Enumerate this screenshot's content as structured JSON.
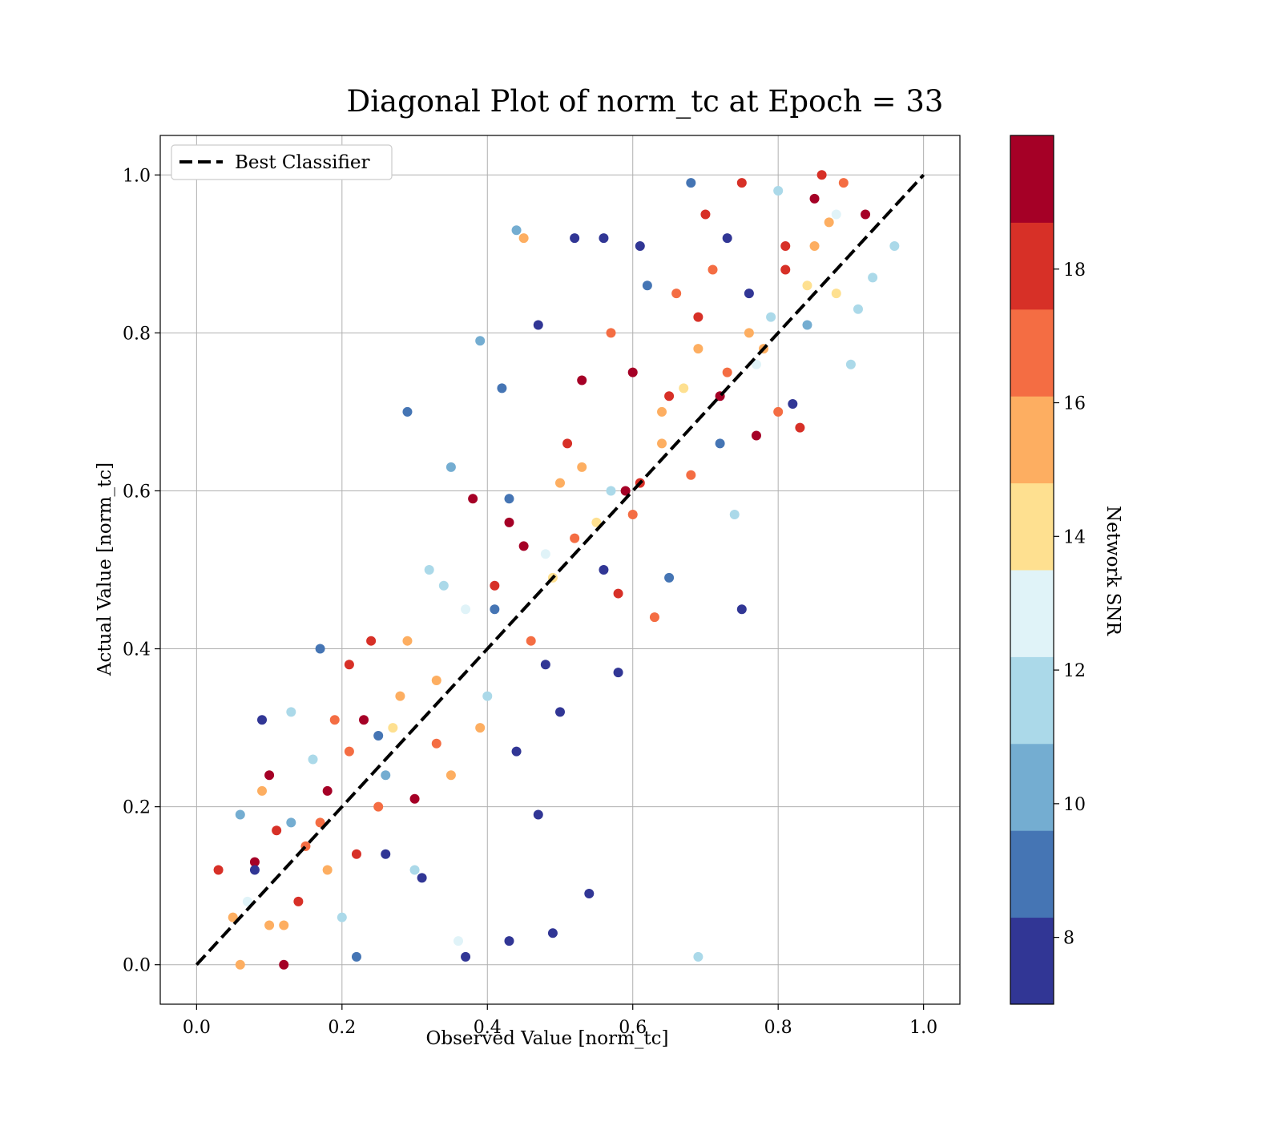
{
  "chart_data": {
    "type": "scatter",
    "title": "Diagonal Plot of norm_tc at Epoch = 33",
    "xlabel": "Observed Value [norm_tc]",
    "ylabel": "Actual Value [norm_tc]",
    "xlim": [
      -0.05,
      1.05
    ],
    "ylim": [
      -0.05,
      1.05
    ],
    "xticks": [
      "0.0",
      "0.2",
      "0.4",
      "0.6",
      "0.8",
      "1.0"
    ],
    "yticks": [
      "0.0",
      "0.2",
      "0.4",
      "0.6",
      "0.8",
      "1.0"
    ],
    "grid": true,
    "legend": {
      "placement": "upper-left",
      "entries": [
        "Best Classifier"
      ]
    },
    "reference_line": {
      "name": "Best Classifier",
      "style": "dashed",
      "color": "#000000",
      "x": [
        0,
        1
      ],
      "y": [
        0,
        1
      ]
    },
    "colorbar": {
      "label": "Network SNR",
      "range": [
        7,
        20
      ],
      "ticks": [
        "8",
        "10",
        "12",
        "14",
        "16",
        "18"
      ],
      "colors": [
        "#313695",
        "#4575b4",
        "#74add1",
        "#abd9e9",
        "#e0f3f8",
        "#fee090",
        "#fdae61",
        "#f46d43",
        "#d73027",
        "#a50026"
      ]
    },
    "points": [
      [
        0.03,
        0.12,
        18
      ],
      [
        0.05,
        0.06,
        15
      ],
      [
        0.06,
        0.19,
        10
      ],
      [
        0.07,
        0.08,
        13
      ],
      [
        0.08,
        0.13,
        19
      ],
      [
        0.09,
        0.31,
        8
      ],
      [
        0.1,
        0.24,
        19
      ],
      [
        0.11,
        0.17,
        18
      ],
      [
        0.12,
        0.05,
        16
      ],
      [
        0.12,
        0.0,
        19
      ],
      [
        0.13,
        0.32,
        12
      ],
      [
        0.15,
        0.15,
        17
      ],
      [
        0.16,
        0.26,
        11
      ],
      [
        0.17,
        0.4,
        9
      ],
      [
        0.18,
        0.22,
        19
      ],
      [
        0.19,
        0.31,
        17
      ],
      [
        0.2,
        0.06,
        11
      ],
      [
        0.21,
        0.38,
        18
      ],
      [
        0.22,
        0.01,
        9
      ],
      [
        0.23,
        0.31,
        19
      ],
      [
        0.24,
        0.41,
        18
      ],
      [
        0.25,
        0.2,
        17
      ],
      [
        0.26,
        0.14,
        8
      ],
      [
        0.27,
        0.3,
        14
      ],
      [
        0.28,
        0.34,
        16
      ],
      [
        0.29,
        0.7,
        9
      ],
      [
        0.3,
        0.21,
        19
      ],
      [
        0.31,
        0.11,
        8
      ],
      [
        0.32,
        0.5,
        11
      ],
      [
        0.33,
        0.28,
        17
      ],
      [
        0.34,
        0.48,
        12
      ],
      [
        0.35,
        0.63,
        10
      ],
      [
        0.36,
        0.03,
        13
      ],
      [
        0.37,
        0.01,
        8
      ],
      [
        0.38,
        0.59,
        19
      ],
      [
        0.39,
        0.79,
        10
      ],
      [
        0.4,
        0.34,
        11
      ],
      [
        0.41,
        0.48,
        18
      ],
      [
        0.42,
        0.73,
        9
      ],
      [
        0.43,
        0.03,
        8
      ],
      [
        0.43,
        0.56,
        19
      ],
      [
        0.44,
        0.27,
        8
      ],
      [
        0.44,
        0.93,
        10
      ],
      [
        0.45,
        0.92,
        15
      ],
      [
        0.46,
        0.41,
        17
      ],
      [
        0.47,
        0.81,
        8
      ],
      [
        0.48,
        0.52,
        13
      ],
      [
        0.48,
        0.38,
        8
      ],
      [
        0.49,
        0.04,
        8
      ],
      [
        0.5,
        0.61,
        16
      ],
      [
        0.5,
        0.32,
        8
      ],
      [
        0.51,
        0.66,
        18
      ],
      [
        0.52,
        0.92,
        8
      ],
      [
        0.53,
        0.74,
        19
      ],
      [
        0.54,
        0.09,
        8
      ],
      [
        0.55,
        0.56,
        14
      ],
      [
        0.56,
        0.92,
        8
      ],
      [
        0.57,
        0.8,
        17
      ],
      [
        0.58,
        0.47,
        18
      ],
      [
        0.58,
        0.37,
        8
      ],
      [
        0.59,
        0.6,
        19
      ],
      [
        0.6,
        0.75,
        19
      ],
      [
        0.61,
        0.91,
        8
      ],
      [
        0.62,
        0.86,
        9
      ],
      [
        0.63,
        0.44,
        17
      ],
      [
        0.64,
        0.7,
        15
      ],
      [
        0.65,
        0.49,
        9
      ],
      [
        0.66,
        0.85,
        17
      ],
      [
        0.67,
        0.73,
        14
      ],
      [
        0.68,
        0.99,
        9
      ],
      [
        0.69,
        0.01,
        11
      ],
      [
        0.69,
        0.82,
        18
      ],
      [
        0.7,
        0.95,
        18
      ],
      [
        0.71,
        0.88,
        17
      ],
      [
        0.72,
        0.66,
        9
      ],
      [
        0.73,
        0.92,
        8
      ],
      [
        0.74,
        0.57,
        12
      ],
      [
        0.75,
        0.45,
        8
      ],
      [
        0.75,
        0.99,
        18
      ],
      [
        0.76,
        0.85,
        8
      ],
      [
        0.77,
        0.67,
        19
      ],
      [
        0.78,
        0.78,
        16
      ],
      [
        0.79,
        0.82,
        11
      ],
      [
        0.8,
        0.98,
        12
      ],
      [
        0.81,
        0.91,
        18
      ],
      [
        0.82,
        0.71,
        8
      ],
      [
        0.83,
        0.68,
        18
      ],
      [
        0.84,
        0.86,
        14
      ],
      [
        0.85,
        0.97,
        19
      ],
      [
        0.86,
        1.0,
        18
      ],
      [
        0.87,
        0.94,
        16
      ],
      [
        0.88,
        0.85,
        14
      ],
      [
        0.89,
        0.99,
        17
      ],
      [
        0.9,
        0.76,
        11
      ],
      [
        0.91,
        0.83,
        12
      ],
      [
        0.92,
        0.95,
        19
      ],
      [
        0.93,
        0.87,
        11
      ],
      [
        0.96,
        0.91,
        11
      ],
      [
        0.06,
        0.0,
        16
      ],
      [
        0.08,
        0.12,
        8
      ],
      [
        0.1,
        0.05,
        16
      ],
      [
        0.14,
        0.08,
        18
      ],
      [
        0.18,
        0.12,
        15
      ],
      [
        0.22,
        0.14,
        18
      ],
      [
        0.26,
        0.24,
        10
      ],
      [
        0.3,
        0.12,
        11
      ],
      [
        0.35,
        0.24,
        15
      ],
      [
        0.39,
        0.3,
        15
      ],
      [
        0.43,
        0.59,
        9
      ],
      [
        0.47,
        0.19,
        8
      ],
      [
        0.52,
        0.54,
        17
      ],
      [
        0.56,
        0.5,
        8
      ],
      [
        0.6,
        0.57,
        17
      ],
      [
        0.64,
        0.66,
        16
      ],
      [
        0.68,
        0.62,
        17
      ],
      [
        0.72,
        0.72,
        19
      ],
      [
        0.76,
        0.8,
        16
      ],
      [
        0.8,
        0.7,
        17
      ],
      [
        0.84,
        0.81,
        10
      ],
      [
        0.88,
        0.95,
        13
      ],
      [
        0.09,
        0.22,
        15
      ],
      [
        0.13,
        0.18,
        10
      ],
      [
        0.17,
        0.18,
        17
      ],
      [
        0.21,
        0.27,
        17
      ],
      [
        0.25,
        0.29,
        9
      ],
      [
        0.29,
        0.41,
        15
      ],
      [
        0.33,
        0.36,
        16
      ],
      [
        0.37,
        0.45,
        13
      ],
      [
        0.41,
        0.45,
        9
      ],
      [
        0.45,
        0.53,
        19
      ],
      [
        0.49,
        0.49,
        14
      ],
      [
        0.53,
        0.63,
        16
      ],
      [
        0.57,
        0.6,
        12
      ],
      [
        0.61,
        0.61,
        18
      ],
      [
        0.65,
        0.72,
        18
      ],
      [
        0.69,
        0.78,
        15
      ],
      [
        0.73,
        0.75,
        17
      ],
      [
        0.77,
        0.76,
        13
      ],
      [
        0.81,
        0.88,
        18
      ],
      [
        0.85,
        0.91,
        15
      ]
    ]
  }
}
